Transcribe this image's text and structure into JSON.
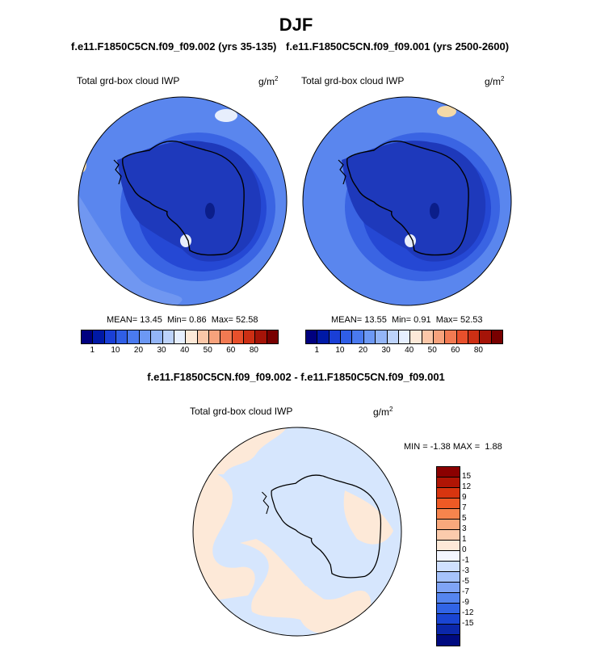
{
  "season": "DJF",
  "variable": "Total grd-box cloud IWP",
  "units": "g/m",
  "units_sup": "2",
  "left": {
    "case": "f.e11.F1850C5CN.f09_f09.002 (yrs 35-135)",
    "mean": "13.45",
    "min": "0.86",
    "max": "52.58"
  },
  "right": {
    "case": "f.e11.F1850C5CN.f09_f09.001 (yrs 2500-2600)",
    "mean": "13.55",
    "min": "0.91",
    "max": "52.53"
  },
  "stat_labels": {
    "mean": "MEAN=",
    "min": "Min=",
    "max": "Max="
  },
  "diff": {
    "title": "f.e11.F1850C5CN.f09_f09.002 - f.e11.F1850C5CN.f09_f09.001",
    "min_label": "MIN =",
    "min": "-1.38",
    "max_label": "MAX =",
    "max": "1.88"
  },
  "colorbar": {
    "colors": [
      "#00007f",
      "#0019a6",
      "#1a3fd6",
      "#2f5ee6",
      "#4a7aef",
      "#6c98f4",
      "#93b5f7",
      "#bcd2fa",
      "#e6efff",
      "#fde9d8",
      "#fbc7a8",
      "#f7a27c",
      "#f27a52",
      "#e8502c",
      "#cd2f14",
      "#a51408",
      "#780000"
    ],
    "labels": [
      "1",
      "10",
      "20",
      "30",
      "40",
      "50",
      "60",
      "80"
    ]
  },
  "diff_colorbar": {
    "colors": [
      "#8b0000",
      "#b01505",
      "#d8350f",
      "#ee5a25",
      "#f6844d",
      "#f9a87c",
      "#fbcbac",
      "#fde9d8",
      "#f3f6ff",
      "#d0e0ff",
      "#a6c3fb",
      "#7fa4f5",
      "#5585ef",
      "#3164e6",
      "#1a45d3",
      "#0b27aa",
      "#000a80"
    ],
    "labels": [
      "15",
      "12",
      "9",
      "7",
      "5",
      "3",
      "1",
      "0",
      "-1",
      "-3",
      "-5",
      "-7",
      "-9",
      "-12",
      "-15"
    ]
  }
}
